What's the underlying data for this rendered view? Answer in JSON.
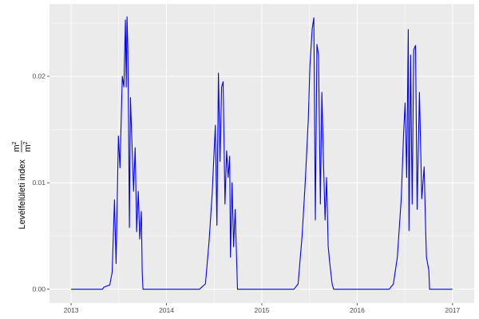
{
  "chart_data": {
    "type": "line",
    "title": "",
    "xlabel": "",
    "ylabel": "Levélfelületi index",
    "ylabel_unit_num": "m",
    "ylabel_unit_den": "m",
    "ylabel_unit_exp": "2",
    "xlim": [
      "2012-10-10",
      "2017-03-25"
    ],
    "ylim": [
      -0.0013,
      0.0268
    ],
    "x_ticks": [
      "2013",
      "2014",
      "2015",
      "2016",
      "2017"
    ],
    "y_ticks": [
      0.0,
      0.01,
      0.02
    ],
    "y_tick_labels": [
      "0.00",
      "0.01",
      "0.02"
    ],
    "grid": true,
    "legend": "none",
    "line_color": "#0000FF",
    "panel_color": "#EBEBEB",
    "series": [
      {
        "points": [
          [
            "2013-01-01",
            0
          ],
          [
            "2013-05-01",
            0
          ],
          [
            "2013-05-07",
            0.0002
          ],
          [
            "2013-05-29",
            0.0004
          ],
          [
            "2013-06-07",
            0.0016
          ],
          [
            "2013-06-16",
            0.0084
          ],
          [
            "2013-06-22",
            0.0024
          ],
          [
            "2013-07-01",
            0.0144
          ],
          [
            "2013-07-07",
            0.0114
          ],
          [
            "2013-07-16",
            0.02
          ],
          [
            "2013-07-22",
            0.019
          ],
          [
            "2013-07-28",
            0.0253
          ],
          [
            "2013-07-31",
            0.019
          ],
          [
            "2013-08-03",
            0.0256
          ],
          [
            "2013-08-06",
            0.0227
          ],
          [
            "2013-08-09",
            0.0152
          ],
          [
            "2013-08-12",
            0.0058
          ],
          [
            "2013-08-16",
            0.018
          ],
          [
            "2013-08-22",
            0.0137
          ],
          [
            "2013-08-28",
            0.0092
          ],
          [
            "2013-09-03",
            0.0133
          ],
          [
            "2013-09-09",
            0.0054
          ],
          [
            "2013-09-15",
            0.0092
          ],
          [
            "2013-09-21",
            0.0047
          ],
          [
            "2013-09-27",
            0.0073
          ],
          [
            "2013-09-30",
            0.0017
          ],
          [
            "2013-10-03",
            0
          ],
          [
            "2014-05-07",
            0
          ],
          [
            "2014-05-30",
            0.0005
          ],
          [
            "2014-06-13",
            0.0045
          ],
          [
            "2014-06-25",
            0.009
          ],
          [
            "2014-07-07",
            0.0154
          ],
          [
            "2014-07-13",
            0.006
          ],
          [
            "2014-07-19",
            0.0203
          ],
          [
            "2014-07-25",
            0.012
          ],
          [
            "2014-07-31",
            0.019
          ],
          [
            "2014-08-06",
            0.0195
          ],
          [
            "2014-08-13",
            0.008
          ],
          [
            "2014-08-19",
            0.013
          ],
          [
            "2014-08-25",
            0.0105
          ],
          [
            "2014-08-31",
            0.0125
          ],
          [
            "2014-09-03",
            0.003
          ],
          [
            "2014-09-09",
            0.01
          ],
          [
            "2014-09-15",
            0.004
          ],
          [
            "2014-09-21",
            0.0075
          ],
          [
            "2014-09-27",
            0.0025
          ],
          [
            "2014-09-30",
            0
          ],
          [
            "2015-05-04",
            0
          ],
          [
            "2015-05-20",
            0.0005
          ],
          [
            "2015-06-04",
            0.005
          ],
          [
            "2015-06-16",
            0.01
          ],
          [
            "2015-06-28",
            0.016
          ],
          [
            "2015-07-04",
            0.021
          ],
          [
            "2015-07-13",
            0.0245
          ],
          [
            "2015-07-19",
            0.0255
          ],
          [
            "2015-07-25",
            0.0065
          ],
          [
            "2015-07-31",
            0.023
          ],
          [
            "2015-08-06",
            0.022
          ],
          [
            "2015-08-13",
            0.008
          ],
          [
            "2015-08-19",
            0.0185
          ],
          [
            "2015-08-25",
            0.012
          ],
          [
            "2015-08-31",
            0.0065
          ],
          [
            "2015-09-06",
            0.0105
          ],
          [
            "2015-09-12",
            0.004
          ],
          [
            "2015-09-18",
            0.0025
          ],
          [
            "2015-09-27",
            0.0005
          ],
          [
            "2015-10-03",
            0
          ],
          [
            "2016-05-03",
            0
          ],
          [
            "2016-05-19",
            0.0005
          ],
          [
            "2016-06-03",
            0.003
          ],
          [
            "2016-06-18",
            0.0085
          ],
          [
            "2016-06-27",
            0.0145
          ],
          [
            "2016-07-03",
            0.0175
          ],
          [
            "2016-07-09",
            0.0105
          ],
          [
            "2016-07-15",
            0.0244
          ],
          [
            "2016-07-18",
            0.0055
          ],
          [
            "2016-07-24",
            0.022
          ],
          [
            "2016-07-30",
            0.008
          ],
          [
            "2016-08-05",
            0.0225
          ],
          [
            "2016-08-12",
            0.0229
          ],
          [
            "2016-08-18",
            0.0075
          ],
          [
            "2016-08-27",
            0.0185
          ],
          [
            "2016-09-05",
            0.0085
          ],
          [
            "2016-09-14",
            0.0115
          ],
          [
            "2016-09-20",
            0.0055
          ],
          [
            "2016-09-23",
            0.003
          ],
          [
            "2016-10-02",
            0.0018
          ],
          [
            "2016-10-05",
            0
          ],
          [
            "2016-12-31",
            0
          ]
        ]
      }
    ]
  }
}
